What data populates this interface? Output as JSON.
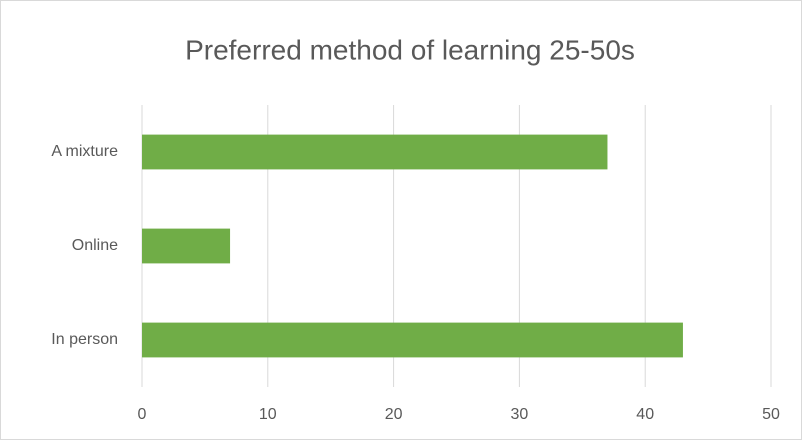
{
  "chart_data": {
    "type": "bar",
    "orientation": "horizontal",
    "title": "Preferred method of learning 25-50s",
    "categories": [
      "In person",
      "Online",
      "A mixture"
    ],
    "values": [
      43,
      7,
      37
    ],
    "color": "#70ad47",
    "xlim": [
      0,
      50
    ],
    "xticks": [
      0,
      10,
      20,
      30,
      40,
      50
    ],
    "grid": true
  }
}
